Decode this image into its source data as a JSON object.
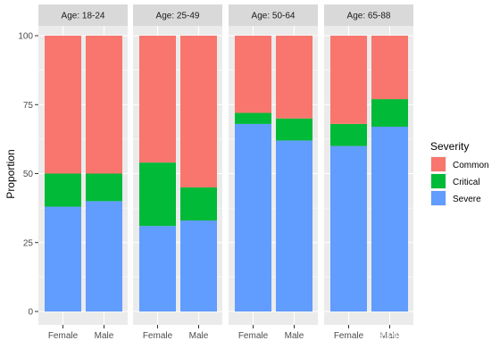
{
  "chart_data": {
    "type": "bar",
    "stacked": true,
    "ylabel": "Proportion",
    "ylim": [
      0,
      100
    ],
    "yticks": [
      0,
      25,
      50,
      75,
      100
    ],
    "categories": [
      "Female",
      "Male"
    ],
    "stack_order_bottom_to_top": [
      "Severe",
      "Critical",
      "Common"
    ],
    "facets": [
      {
        "label": "Age: 18-24",
        "series": [
          {
            "name": "Severe",
            "values": [
              38,
              40
            ]
          },
          {
            "name": "Critical",
            "values": [
              12,
              10
            ]
          },
          {
            "name": "Common",
            "values": [
              50,
              50
            ]
          }
        ]
      },
      {
        "label": "Age: 25-49",
        "series": [
          {
            "name": "Severe",
            "values": [
              31,
              33
            ]
          },
          {
            "name": "Critical",
            "values": [
              23,
              12
            ]
          },
          {
            "name": "Common",
            "values": [
              46,
              55
            ]
          }
        ]
      },
      {
        "label": "Age: 50-64",
        "series": [
          {
            "name": "Severe",
            "values": [
              68,
              62
            ]
          },
          {
            "name": "Critical",
            "values": [
              4,
              8
            ]
          },
          {
            "name": "Common",
            "values": [
              28,
              30
            ]
          }
        ]
      },
      {
        "label": "Age: 65-88",
        "series": [
          {
            "name": "Severe",
            "values": [
              60,
              67
            ]
          },
          {
            "name": "Critical",
            "values": [
              8,
              10
            ]
          },
          {
            "name": "Common",
            "values": [
              32,
              23
            ]
          }
        ]
      }
    ],
    "legend": {
      "title": "Severity",
      "entries": [
        "Common",
        "Critical",
        "Severe"
      ],
      "placement": "right"
    },
    "grid": true,
    "colors": {
      "Common": "#F8766D",
      "Critical": "#00BA38",
      "Severe": "#619CFF",
      "panel_bg": "#EBEBEB",
      "strip_bg": "#D9D9D9",
      "grid": "#FFFFFF"
    }
  },
  "watermark": "知乎 @墨点星沟"
}
